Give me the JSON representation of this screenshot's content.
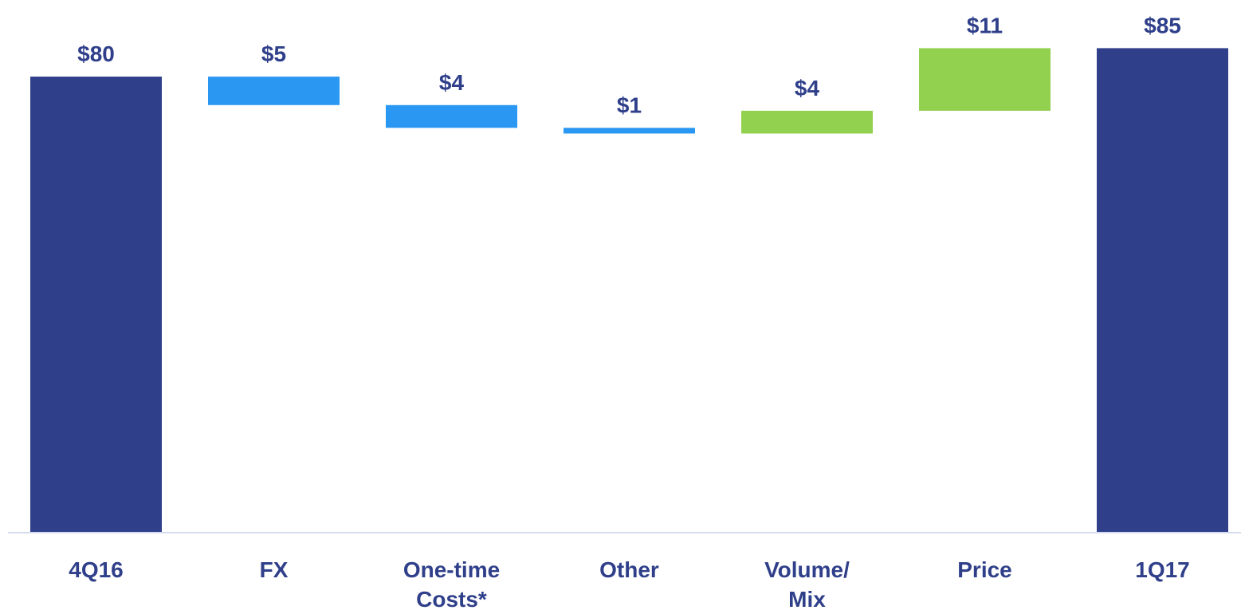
{
  "chart_data": {
    "type": "bar",
    "subtype": "waterfall",
    "title": "",
    "xlabel": "",
    "ylabel": "",
    "categories": [
      [
        "4Q16"
      ],
      [
        "FX"
      ],
      [
        "One-time",
        "Costs*"
      ],
      [
        "Other"
      ],
      [
        "Volume/",
        "Mix"
      ],
      [
        "Price"
      ],
      [
        "1Q17"
      ]
    ],
    "bars": [
      {
        "kind": "total",
        "start": 0,
        "end": 80,
        "label": "$80",
        "color": "#2f3f8a"
      },
      {
        "kind": "delta",
        "start": 80,
        "end": 75,
        "label": "$5",
        "color": "#2a97f3"
      },
      {
        "kind": "delta",
        "start": 75,
        "end": 71,
        "label": "$4",
        "color": "#2a97f3"
      },
      {
        "kind": "delta",
        "start": 71,
        "end": 70,
        "label": "$1",
        "color": "#2a97f3"
      },
      {
        "kind": "delta",
        "start": 70,
        "end": 74,
        "label": "$4",
        "color": "#92d050"
      },
      {
        "kind": "delta",
        "start": 74,
        "end": 85,
        "label": "$11",
        "color": "#92d050"
      },
      {
        "kind": "total",
        "start": 0,
        "end": 85,
        "label": "$85",
        "color": "#2f3f8a"
      }
    ],
    "ylim": [
      0,
      88
    ],
    "grid": false,
    "legend": "none",
    "text_color": "#2f3f8a",
    "axis_color": "#d6dbef"
  }
}
